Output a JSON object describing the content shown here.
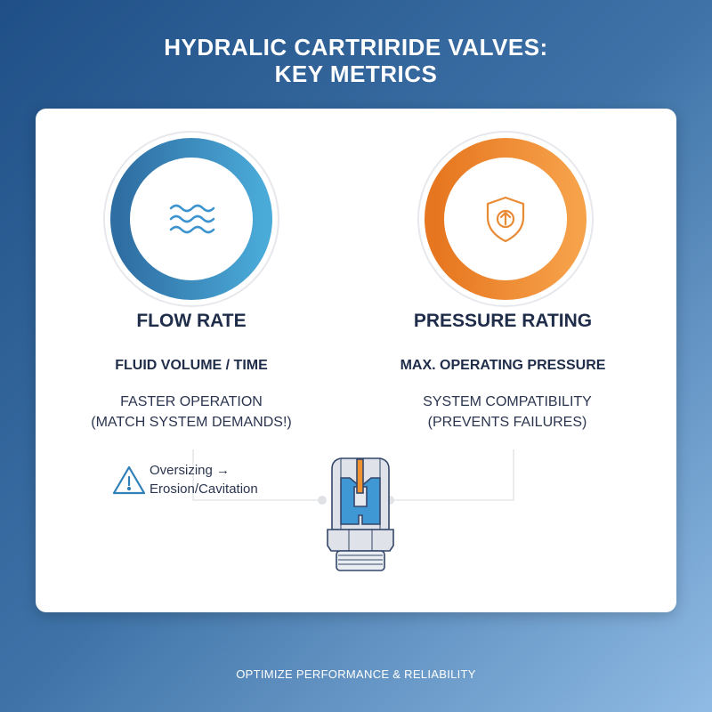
{
  "title": {
    "line1": "HYDRALIC CARTRIRIDE VALVES:",
    "line2": "KEY METRICS"
  },
  "metrics": [
    {
      "heading": "FLOW RATE",
      "subheading": "FLUID VOLUME / TIME",
      "desc1": "FASTER OPERATION",
      "desc2": "(MATCH SYSTEM DEMANDS!)",
      "icon": "water-waves-icon",
      "color_dark": "#2f6ea3",
      "color_light": "#4aa9d6"
    },
    {
      "heading": "PRESSURE RATING",
      "subheading": "MAX. OPERATING PRESSURE",
      "desc1": "SYSTEM COMPATIBILITY",
      "desc2": "(PREVENTS FAILURES)",
      "icon": "shield-arrow-up-icon",
      "color_dark": "#e77a25",
      "color_light": "#f5a04a"
    }
  ],
  "warning": {
    "line1": "Oversizing →",
    "line2": "Erosion/Cavitation",
    "icon": "warning-triangle-icon",
    "color": "#2f7fb8"
  },
  "footer": "OPTIMIZE PERFORMANCE & RELIABILITY"
}
